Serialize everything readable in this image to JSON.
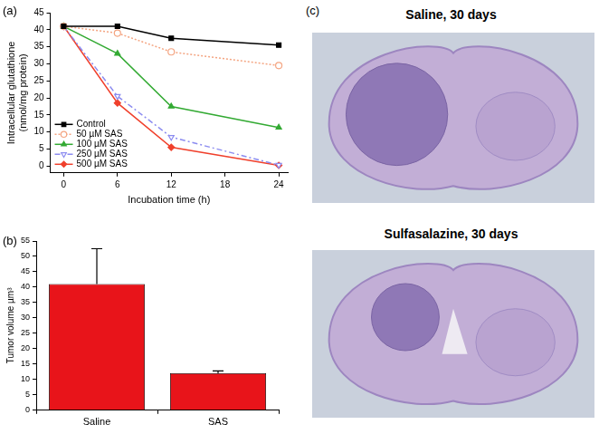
{
  "chart_data": [
    {
      "panel": "(a)",
      "type": "line",
      "x_label": "Incubation time (h)",
      "y_label": [
        "Intracellular glutathione",
        "(nmol/mg protein)"
      ],
      "x": [
        0,
        6,
        12,
        24
      ],
      "xlim": [
        -1.5,
        25
      ],
      "xticks": [
        0,
        6,
        12,
        18,
        24
      ],
      "ylim": [
        -2,
        45
      ],
      "yticks": [
        0,
        5,
        10,
        15,
        20,
        25,
        30,
        35,
        40,
        45
      ],
      "grid": false,
      "legend": "lower left",
      "series": [
        {
          "name": "Control",
          "color": "#000000",
          "marker": "square",
          "line_style": "solid",
          "values": [
            41,
            41,
            37.5,
            35.5
          ]
        },
        {
          "name": "50 µM SAS",
          "color": "#f4a582",
          "marker": "open_circle",
          "line_style": "dotted",
          "values": [
            41,
            39,
            33.5,
            29.5
          ]
        },
        {
          "name": "100 µM SAS",
          "color": "#33aa33",
          "marker": "triangle",
          "line_style": "solid",
          "values": [
            41,
            33,
            17.5,
            11.3
          ]
        },
        {
          "name": "250 µM SAS",
          "color": "#8c8cf0",
          "marker": "open_triangle_down",
          "line_style": "dash_dot",
          "values": [
            41,
            20.5,
            8.5,
            0.3
          ]
        },
        {
          "name": "500 µM SAS",
          "color": "#f0402c",
          "marker": "diamond",
          "line_style": "solid",
          "values": [
            41,
            18.5,
            5.5,
            0.2
          ]
        }
      ]
    },
    {
      "panel": "(b)",
      "type": "bar",
      "y_label": "Tumor volume µm³",
      "categories": [
        "Saline",
        "SAS"
      ],
      "values": [
        41,
        12
      ],
      "errors": [
        11.5,
        0.8
      ],
      "color": "#e8141a",
      "ylim": [
        0,
        55
      ],
      "yticks": [
        0,
        5,
        10,
        15,
        20,
        25,
        30,
        35,
        40,
        45,
        50,
        55
      ],
      "grid": false
    }
  ],
  "images": {
    "panel": "(c)",
    "titles": [
      "Saline, 30 days",
      "Sulfasalazine, 30 days"
    ]
  }
}
